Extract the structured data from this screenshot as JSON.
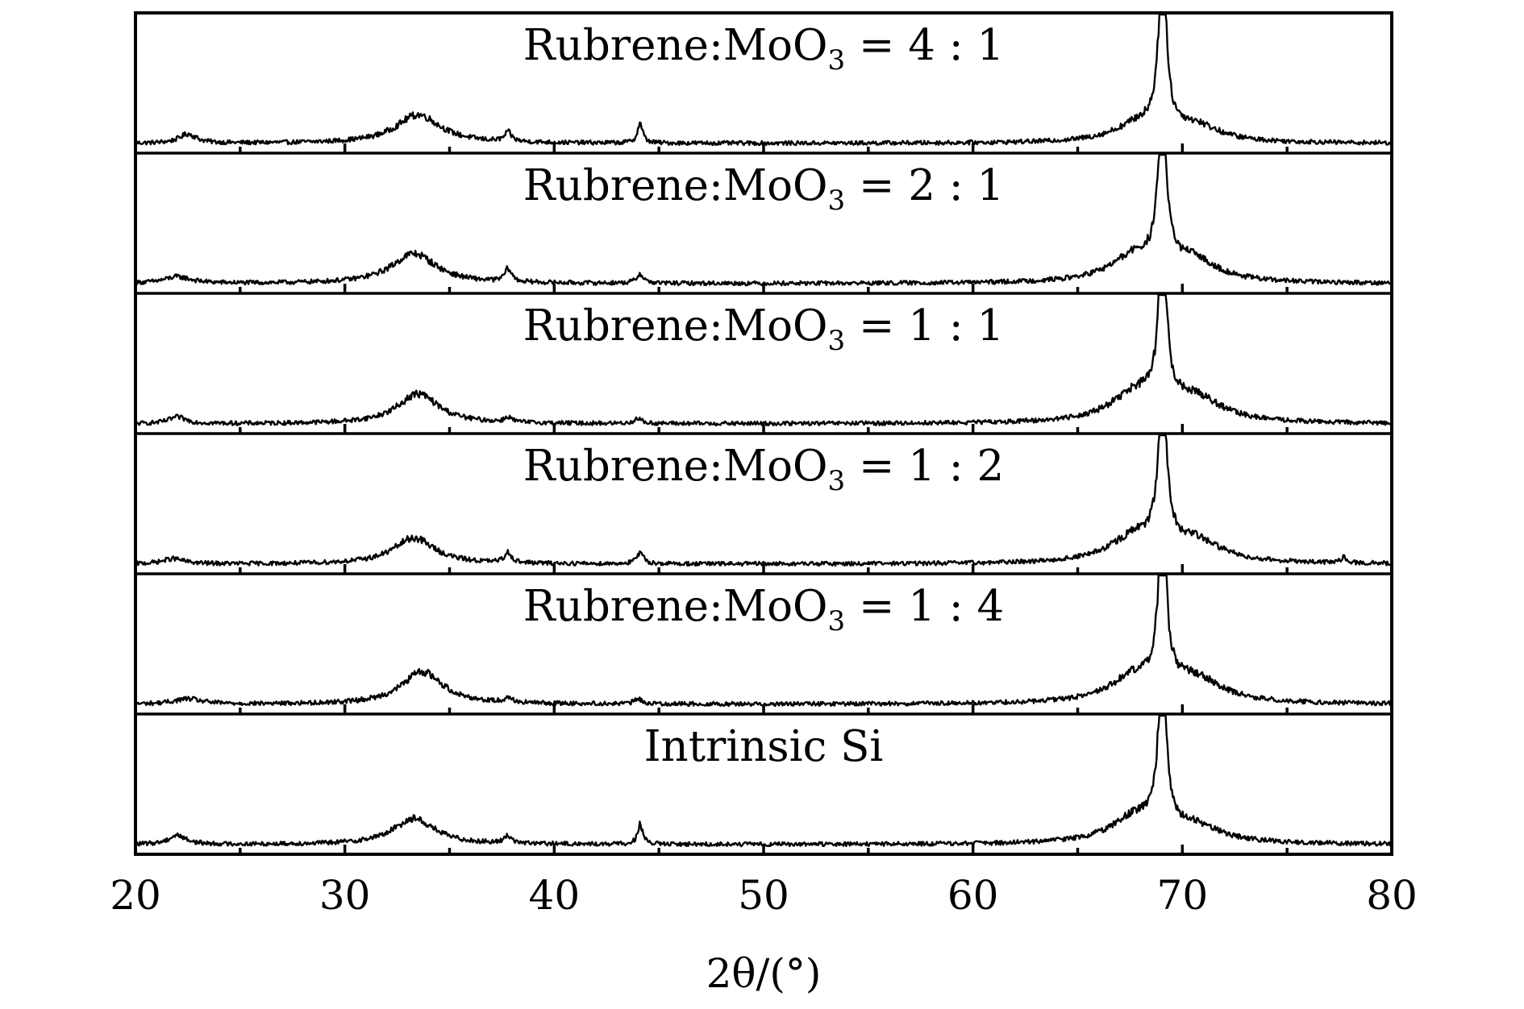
{
  "chart_data": {
    "type": "line",
    "layout": "stacked-panels",
    "xlabel": "2θ/(°)",
    "ylabel": "",
    "xlim": [
      20,
      80
    ],
    "xticks": [
      20,
      30,
      40,
      50,
      60,
      70,
      80
    ],
    "minor_xticks": [
      25,
      35,
      45,
      55,
      65,
      75
    ],
    "grid": false,
    "legend": "none",
    "panels": [
      {
        "label": "Rubrene:MoO3 = 4:1",
        "label_parts": [
          "Rubrene:MoO",
          "3",
          " = 4 : 1"
        ],
        "peaks": [
          {
            "center": 22.5,
            "width": 0.5,
            "height": 0.07
          },
          {
            "center": 33.5,
            "width": 1.3,
            "height": 0.22
          },
          {
            "center": 37.8,
            "width": 0.2,
            "height": 0.07
          },
          {
            "center": 44.1,
            "width": 0.15,
            "height": 0.15
          },
          {
            "center": 68.0,
            "width": 1.5,
            "height": 0.14
          },
          {
            "center": 69.05,
            "width": 0.22,
            "height": 1.3
          },
          {
            "center": 70.6,
            "width": 1.4,
            "height": 0.12
          }
        ]
      },
      {
        "label": "Rubrene:MoO3 = 2:1",
        "label_parts": [
          "Rubrene:MoO",
          "3",
          " = 2 : 1"
        ],
        "peaks": [
          {
            "center": 22.0,
            "width": 0.8,
            "height": 0.05
          },
          {
            "center": 33.3,
            "width": 1.3,
            "height": 0.23
          },
          {
            "center": 37.8,
            "width": 0.2,
            "height": 0.1
          },
          {
            "center": 44.1,
            "width": 0.2,
            "height": 0.07
          },
          {
            "center": 67.8,
            "width": 1.5,
            "height": 0.2
          },
          {
            "center": 69.05,
            "width": 0.22,
            "height": 1.3
          },
          {
            "center": 70.5,
            "width": 1.4,
            "height": 0.16
          }
        ]
      },
      {
        "label": "Rubrene:MoO3 = 1:1",
        "label_parts": [
          "Rubrene:MoO",
          "3",
          " = 1 : 1"
        ],
        "peaks": [
          {
            "center": 22.0,
            "width": 0.5,
            "height": 0.05
          },
          {
            "center": 33.5,
            "width": 1.2,
            "height": 0.23
          },
          {
            "center": 37.8,
            "width": 0.2,
            "height": 0.04
          },
          {
            "center": 44.0,
            "width": 0.2,
            "height": 0.04
          },
          {
            "center": 67.8,
            "width": 1.5,
            "height": 0.22
          },
          {
            "center": 69.05,
            "width": 0.22,
            "height": 1.3
          },
          {
            "center": 70.6,
            "width": 1.5,
            "height": 0.18
          }
        ]
      },
      {
        "label": "Rubrene:MoO3 = 1:2",
        "label_parts": [
          "Rubrene:MoO",
          "3",
          " = 1 : 2"
        ],
        "peaks": [
          {
            "center": 21.8,
            "width": 0.6,
            "height": 0.04
          },
          {
            "center": 33.3,
            "width": 1.2,
            "height": 0.2
          },
          {
            "center": 37.8,
            "width": 0.2,
            "height": 0.08
          },
          {
            "center": 44.1,
            "width": 0.2,
            "height": 0.08
          },
          {
            "center": 67.8,
            "width": 1.5,
            "height": 0.2
          },
          {
            "center": 69.05,
            "width": 0.22,
            "height": 1.3
          },
          {
            "center": 70.6,
            "width": 1.5,
            "height": 0.16
          },
          {
            "center": 77.7,
            "width": 0.15,
            "height": 0.04
          }
        ]
      },
      {
        "label": "Rubrene:MoO3 = 1:4",
        "label_parts": [
          "Rubrene:MoO",
          "3",
          " = 1 : 4"
        ],
        "peaks": [
          {
            "center": 22.5,
            "width": 0.8,
            "height": 0.04
          },
          {
            "center": 33.7,
            "width": 1.2,
            "height": 0.25
          },
          {
            "center": 37.8,
            "width": 0.2,
            "height": 0.04
          },
          {
            "center": 44.0,
            "width": 0.2,
            "height": 0.04
          },
          {
            "center": 67.8,
            "width": 1.5,
            "height": 0.2
          },
          {
            "center": 69.05,
            "width": 0.22,
            "height": 1.3
          },
          {
            "center": 70.6,
            "width": 1.5,
            "height": 0.18
          }
        ]
      },
      {
        "label": "Intrinsic Si",
        "label_parts": [
          "Intrinsic Si"
        ],
        "peaks": [
          {
            "center": 22.0,
            "width": 0.5,
            "height": 0.07
          },
          {
            "center": 33.3,
            "width": 1.2,
            "height": 0.2
          },
          {
            "center": 37.8,
            "width": 0.2,
            "height": 0.06
          },
          {
            "center": 44.1,
            "width": 0.15,
            "height": 0.15
          },
          {
            "center": 67.8,
            "width": 1.5,
            "height": 0.2
          },
          {
            "center": 69.05,
            "width": 0.22,
            "height": 1.3
          },
          {
            "center": 70.6,
            "width": 1.5,
            "height": 0.12
          }
        ]
      }
    ]
  }
}
